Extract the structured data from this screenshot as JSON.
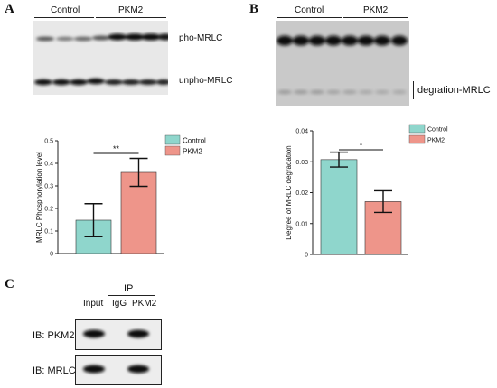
{
  "panel_a": {
    "letter": "A",
    "groups": [
      "Control",
      "PKM2"
    ],
    "band_labels": [
      "pho-MRLC",
      "unpho-MRLC"
    ]
  },
  "panel_b": {
    "letter": "B",
    "groups": [
      "Control",
      "PKM2"
    ],
    "band_labels": [
      "degration-MRLC"
    ]
  },
  "panel_c": {
    "letter": "C",
    "ip_label": "IP",
    "lanes": [
      "Input",
      "IgG",
      "PKM2"
    ],
    "rows": [
      "IB: PKM2",
      "IB: MRLC"
    ]
  },
  "colors": {
    "control": "#8fd6cc",
    "pkm2": "#ee958a"
  },
  "chart_data": [
    {
      "type": "bar",
      "categories": [
        "Control",
        "PKM2"
      ],
      "values": [
        0.148,
        0.36
      ],
      "error": [
        0.073,
        0.062
      ],
      "ylabel": "MRLC Phosphorylation level",
      "ylim": [
        0,
        0.5
      ],
      "yticks": [
        "0",
        "0.1",
        "0.2",
        "0.3",
        "0.4",
        "0.5"
      ],
      "legend": [
        "Control",
        "PKM2"
      ],
      "legend_position": "top-right",
      "significance": "**"
    },
    {
      "type": "bar",
      "categories": [
        "Control",
        "PKM2"
      ],
      "values": [
        0.0307,
        0.0171
      ],
      "error": [
        0.0024,
        0.0035
      ],
      "ylabel": "Degree of MRLC degradation",
      "ylim": [
        0,
        0.04
      ],
      "yticks": [
        "0",
        "0.01",
        "0.02",
        "0.03",
        "0.04"
      ],
      "legend": [
        "Control",
        "PKM2"
      ],
      "legend_position": "top-right",
      "significance": "*"
    }
  ]
}
